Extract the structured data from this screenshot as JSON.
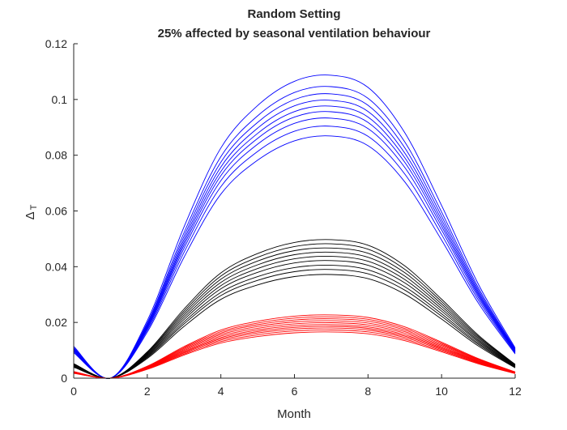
{
  "chart_data": {
    "type": "line",
    "title": "Random Setting",
    "subtitle": "25% affected by seasonal ventilation behaviour",
    "xlabel": "Month",
    "ylabel": "Δ",
    "ylabel_sub": "T",
    "xlim": [
      0,
      12
    ],
    "ylim": [
      0,
      0.12
    ],
    "xticks": [
      "0",
      "2",
      "4",
      "6",
      "8",
      "10",
      "12"
    ],
    "yticks": [
      "0",
      "0.02",
      "0.04",
      "0.06",
      "0.08",
      "0.1",
      "0.12"
    ],
    "grid": false,
    "x": [
      0,
      1,
      2,
      3,
      4,
      5,
      6,
      7,
      8,
      9,
      10,
      11,
      12
    ],
    "profile": [
      0.105,
      0,
      0.19,
      0.5,
      0.76,
      0.9,
      0.98,
      1.0,
      0.96,
      0.81,
      0.57,
      0.31,
      0.1
    ],
    "groups": [
      {
        "name": "blue group",
        "color": "#0000ff",
        "peaks": [
          0.1087,
          0.1046,
          0.102,
          0.0997,
          0.0976,
          0.0956,
          0.0933,
          0.0904,
          0.0869
        ]
      },
      {
        "name": "black group",
        "color": "#000000",
        "peaks": [
          0.0497,
          0.0482,
          0.0467,
          0.0452,
          0.0437,
          0.0422,
          0.0405,
          0.039,
          0.0372
        ]
      },
      {
        "name": "red group",
        "color": "#ff0000",
        "peaks": [
          0.0227,
          0.022,
          0.0213,
          0.0206,
          0.0199,
          0.0192,
          0.0186,
          0.018,
          0.0173,
          0.0166
        ]
      }
    ]
  }
}
